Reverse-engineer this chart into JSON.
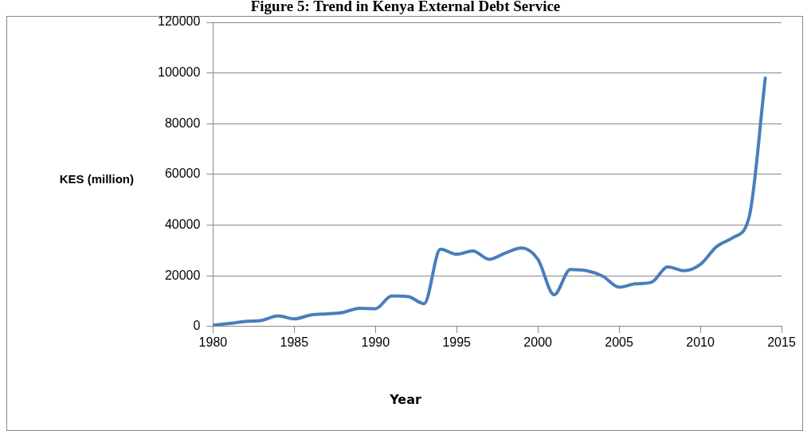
{
  "chart_data": {
    "type": "line",
    "title": "Figure 5: Trend in Kenya External Debt Service",
    "xlabel": "Year",
    "ylabel": "KES (million)",
    "x": [
      1980,
      1981,
      1982,
      1983,
      1984,
      1985,
      1986,
      1987,
      1988,
      1989,
      1990,
      1991,
      1992,
      1993,
      1994,
      1995,
      1996,
      1997,
      1998,
      1999,
      2000,
      2001,
      2002,
      2003,
      2004,
      2005,
      2006,
      2007,
      2008,
      2009,
      2010,
      2011,
      2012,
      2013,
      2014
    ],
    "series": [
      {
        "color": "#4a7ebb",
        "values": [
          500,
          1200,
          2000,
          2400,
          4200,
          3000,
          4500,
          5000,
          5500,
          7200,
          7000,
          12000,
          11800,
          9000,
          30500,
          28500,
          29800,
          26500,
          29000,
          31000,
          26500,
          12500,
          22500,
          22000,
          19800,
          15500,
          16800,
          17500,
          23500,
          22000,
          24500,
          31500,
          35000,
          43000,
          98000
        ]
      }
    ],
    "xlim": [
      1980,
      2015
    ],
    "xticks": [
      1980,
      1985,
      1990,
      1995,
      2000,
      2005,
      2010,
      2015
    ],
    "ylim": [
      0,
      120000
    ],
    "yticks": [
      0,
      20000,
      40000,
      60000,
      80000,
      100000,
      120000
    ],
    "grid": "y",
    "legend": false,
    "marker": "none",
    "line_style": "solid"
  }
}
